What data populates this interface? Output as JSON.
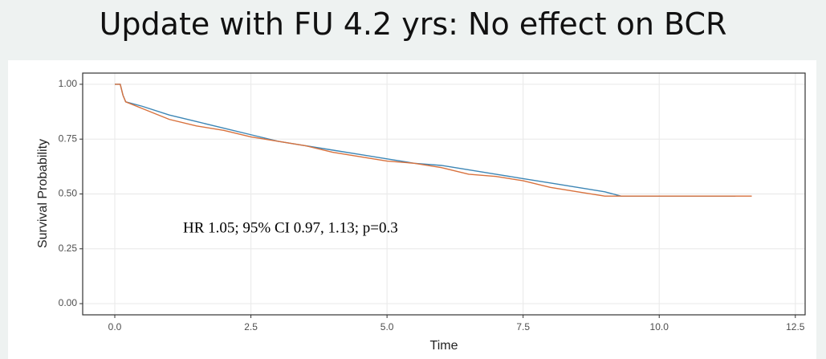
{
  "slide_title": "Update with FU 4.2 yrs: No effect on BCR",
  "chart_data": {
    "type": "line",
    "step": true,
    "x_label": "Time",
    "y_label": "Survival Probability",
    "annotation": "HR 1.05; 95% CI 0.97, 1.13; p=0.3",
    "xlim": [
      -0.59,
      12.68
    ],
    "ylim": [
      -0.051,
      1.051
    ],
    "xticks": [
      {
        "value": 0,
        "label": "0.0"
      },
      2.5,
      {
        "value": 5,
        "label": "5.0"
      },
      7.5,
      {
        "value": 10,
        "label": "10.0"
      },
      12.5
    ],
    "yticks": [
      {
        "value": 0,
        "label": "0.00"
      },
      0.25,
      {
        "value": 0.5,
        "label": "0.50"
      },
      0.75,
      {
        "value": 1,
        "label": "1.00"
      }
    ],
    "grid": true,
    "series": [
      {
        "color": "#3d86b5",
        "x": [
          0,
          0.1,
          0.15,
          0.2,
          0.5,
          1,
          1.5,
          2,
          2.5,
          3,
          3.5,
          4,
          4.5,
          5,
          5.5,
          6,
          6.5,
          7,
          7.5,
          8,
          8.5,
          9,
          9.3,
          11.4
        ],
        "values": [
          1,
          1,
          0.95,
          0.92,
          0.9,
          0.86,
          0.83,
          0.8,
          0.77,
          0.74,
          0.72,
          0.7,
          0.68,
          0.66,
          0.64,
          0.63,
          0.61,
          0.59,
          0.57,
          0.55,
          0.53,
          0.51,
          0.49,
          0.49
        ]
      },
      {
        "color": "#d8713d",
        "x": [
          0,
          0.1,
          0.15,
          0.2,
          0.5,
          1,
          1.5,
          2,
          2.5,
          3,
          3.5,
          4,
          4.5,
          5,
          5.5,
          6,
          6.5,
          7,
          7.5,
          8,
          8.5,
          9,
          11.7
        ],
        "values": [
          1,
          1,
          0.95,
          0.92,
          0.89,
          0.84,
          0.81,
          0.79,
          0.76,
          0.74,
          0.72,
          0.69,
          0.67,
          0.65,
          0.64,
          0.62,
          0.59,
          0.58,
          0.56,
          0.53,
          0.51,
          0.49,
          0.49
        ]
      }
    ]
  }
}
